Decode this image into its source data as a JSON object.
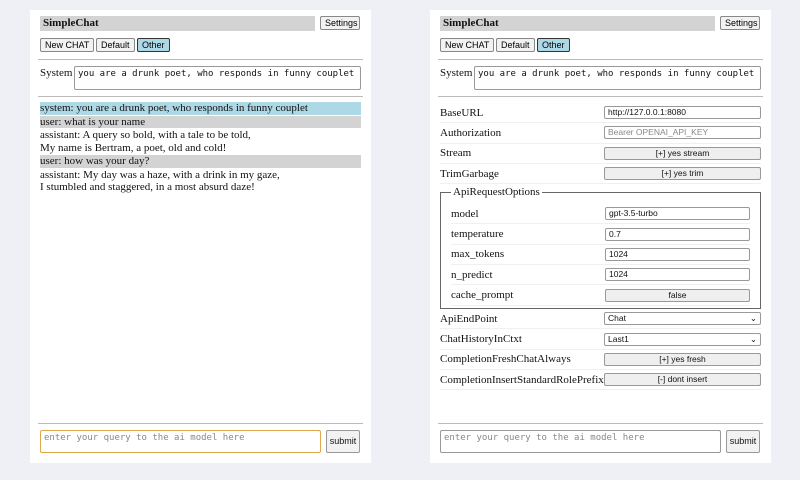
{
  "app": {
    "title": "SimpleChat",
    "settings_label": "Settings",
    "buttons": [
      "New CHAT",
      "Default",
      "Other"
    ],
    "active_button": "Other",
    "system_label": "System",
    "system_prompt": "you are a drunk poet, who responds in funny couplet",
    "query_placeholder": "enter your query to the ai model here",
    "submit_label": "submit"
  },
  "chat": {
    "messages": [
      {
        "role": "system",
        "text": "system: you are a drunk poet, who responds in funny couplet"
      },
      {
        "role": "user",
        "text": "user: what is your name"
      },
      {
        "role": "assistant",
        "text": "assistant: A query so bold, with a tale to be told,\nMy name is Bertram, a poet, old and cold!"
      },
      {
        "role": "user",
        "text": "user: how was your day?"
      },
      {
        "role": "assistant",
        "text": "assistant: My day was a haze, with a drink in my gaze,\nI stumbled and staggered, in a most absurd daze!"
      }
    ]
  },
  "settings": {
    "baseurl": {
      "label": "BaseURL",
      "value": "http://127.0.0.1:8080"
    },
    "authorization": {
      "label": "Authorization",
      "placeholder": "Bearer OPENAI_API_KEY"
    },
    "stream": {
      "label": "Stream",
      "value": "[+] yes stream"
    },
    "trim": {
      "label": "TrimGarbage",
      "value": "[+] yes trim"
    },
    "api_options": {
      "legend": "ApiRequestOptions",
      "model": {
        "label": "model",
        "value": "gpt-3.5-turbo"
      },
      "temperature": {
        "label": "temperature",
        "value": "0.7"
      },
      "max_tokens": {
        "label": "max_tokens",
        "value": "1024"
      },
      "n_predict": {
        "label": "n_predict",
        "value": "1024"
      },
      "cache_prompt": {
        "label": "cache_prompt",
        "value": "false"
      }
    },
    "endpoint": {
      "label": "ApiEndPoint",
      "value": "Chat"
    },
    "history": {
      "label": "ChatHistoryInCtxt",
      "value": "Last1"
    },
    "fresh": {
      "label": "CompletionFreshChatAlways",
      "value": "[+] yes fresh"
    },
    "prefix": {
      "label": "CompletionInsertStandardRolePrefix",
      "value": "[-] dont insert"
    }
  }
}
